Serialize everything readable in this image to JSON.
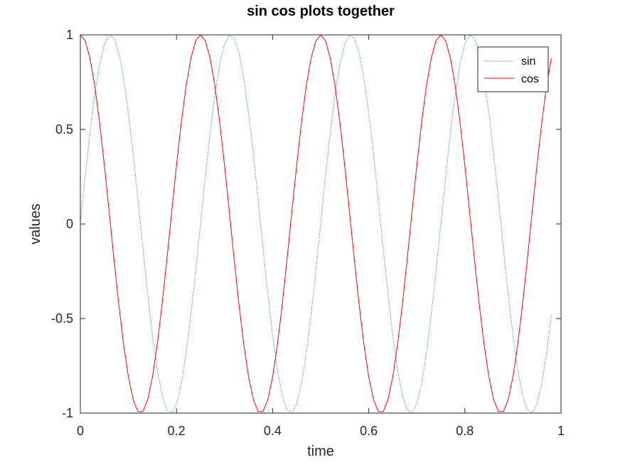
{
  "chart_data": {
    "type": "line",
    "title": "sin cos plots together",
    "xlabel": "time",
    "ylabel": "values",
    "xlim": [
      0,
      1
    ],
    "ylim": [
      -1,
      1
    ],
    "xticks": [
      0,
      0.2,
      0.4,
      0.6,
      0.8,
      1
    ],
    "xtick_labels": [
      "0",
      "0.2",
      "0.4",
      "0.6",
      "0.8",
      "1"
    ],
    "yticks": [
      -1,
      -0.5,
      0,
      0.5,
      1
    ],
    "ytick_labels": [
      "-1",
      "-0.5",
      "0",
      "0.5",
      "1"
    ],
    "grid": false,
    "legend_position": "top-right",
    "sample_step": 0.01,
    "x_end": 0.98,
    "frequency_hz": 4,
    "series": [
      {
        "name": "sin",
        "function": "sin",
        "color": "#0072BD",
        "line_style": "dotted"
      },
      {
        "name": "cos",
        "function": "cos",
        "color": "#FF0000",
        "line_style": "solid"
      }
    ]
  }
}
